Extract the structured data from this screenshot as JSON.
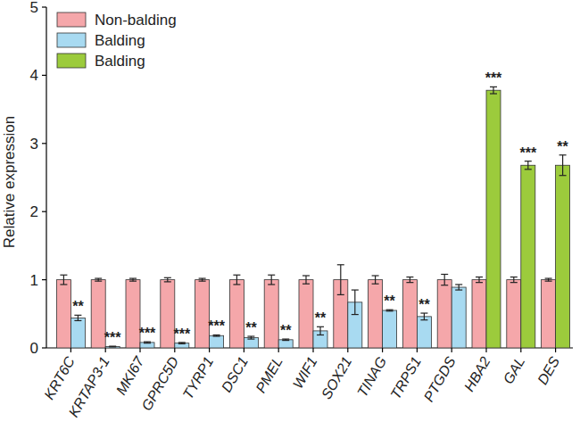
{
  "chart_data": {
    "type": "bar",
    "y_label": "Relative expression",
    "categories": [
      "KRT6C",
      "KRTAP3-1",
      "MKI67",
      "GPRC5D",
      "TYRP1",
      "DSC1",
      "PMEL",
      "WIF1",
      "SOX21",
      "TINAG",
      "TRPS1",
      "PTGDS",
      "HBA2",
      "GAL",
      "DES"
    ],
    "series": [
      {
        "name": "Non-balding",
        "color": "#f5a7aa",
        "values": [
          1,
          1,
          1,
          1,
          1,
          1,
          1,
          1,
          1,
          1,
          1,
          1,
          1,
          1,
          1
        ],
        "errors": [
          0.07,
          0.02,
          0.02,
          0.03,
          0.02,
          0.07,
          0.07,
          0.06,
          0.22,
          0.06,
          0.04,
          0.08,
          0.04,
          0.04,
          0.02
        ]
      },
      {
        "name": "Balding",
        "color": "#a8daf1",
        "values": [
          0.44,
          0.02,
          0.08,
          0.07,
          0.18,
          0.15,
          0.12,
          0.25,
          0.67,
          0.55,
          0.46,
          0.89,
          null,
          null,
          null
        ],
        "errors": [
          0.04,
          0.005,
          0.01,
          0.01,
          0.01,
          0.02,
          0.01,
          0.06,
          0.18,
          0.01,
          0.05,
          0.04,
          null,
          null,
          null
        ]
      },
      {
        "name": "Balding",
        "color": "#9ccb3c",
        "values": [
          null,
          null,
          null,
          null,
          null,
          null,
          null,
          null,
          null,
          null,
          null,
          null,
          3.78,
          2.68,
          2.68
        ],
        "errors": [
          null,
          null,
          null,
          null,
          null,
          null,
          null,
          null,
          null,
          null,
          null,
          null,
          0.05,
          0.06,
          0.15
        ]
      }
    ],
    "annotations": [
      {
        "category": "KRT6C",
        "series": 1,
        "text": "**"
      },
      {
        "category": "KRTAP3-1",
        "series": 1,
        "text": "***"
      },
      {
        "category": "MKI67",
        "series": 1,
        "text": "***"
      },
      {
        "category": "GPRC5D",
        "series": 1,
        "text": "***"
      },
      {
        "category": "TYRP1",
        "series": 1,
        "text": "***"
      },
      {
        "category": "DSC1",
        "series": 1,
        "text": "**"
      },
      {
        "category": "PMEL",
        "series": 1,
        "text": "**"
      },
      {
        "category": "WIF1",
        "series": 1,
        "text": "**"
      },
      {
        "category": "TINAG",
        "series": 1,
        "text": "**"
      },
      {
        "category": "TRPS1",
        "series": 1,
        "text": "**"
      },
      {
        "category": "HBA2",
        "series": 2,
        "text": "***"
      },
      {
        "category": "GAL",
        "series": 2,
        "text": "***"
      },
      {
        "category": "DES",
        "series": 2,
        "text": "**"
      }
    ],
    "ylim": [
      0,
      5
    ],
    "yticks": [
      0,
      1,
      2,
      3,
      4,
      5
    ],
    "legend": "top-left",
    "grid": false
  }
}
